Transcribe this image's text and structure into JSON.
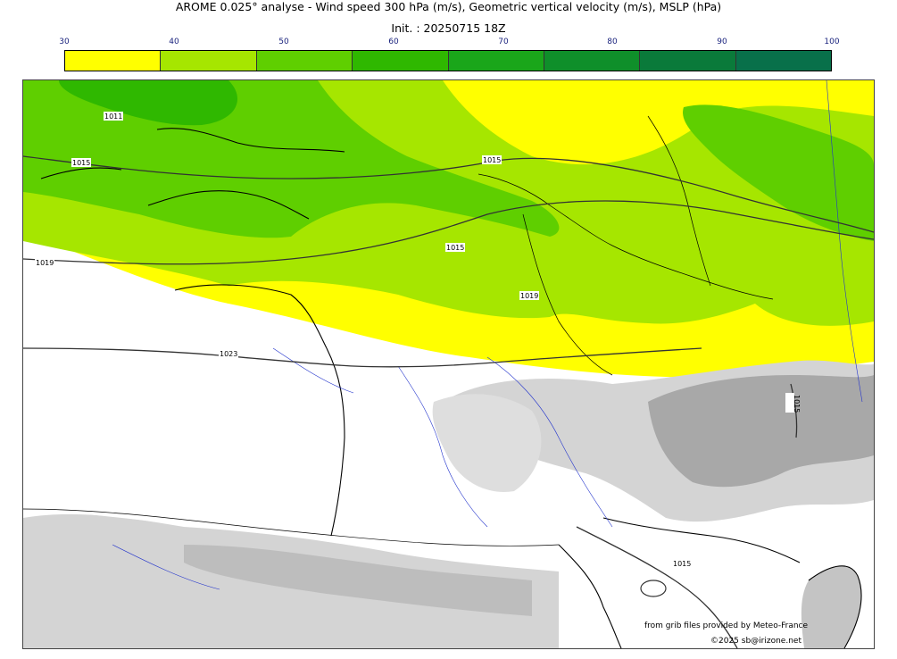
{
  "header": {
    "title": "AROME 0.025° analyse - Wind speed 300 hPa (m/s), Geometric vertical velocity (m/s), MSLP (hPa)",
    "subtitle": "Init. : 20250715 18Z"
  },
  "colorbar": {
    "ticks": [
      "30",
      "40",
      "50",
      "60",
      "70",
      "80",
      "90",
      "100"
    ],
    "colors": [
      "#ffff00",
      "#a6e600",
      "#5fcf00",
      "#2fb800",
      "#1aa61a",
      "#0f8f2a",
      "#0a7a3a",
      "#08704a"
    ]
  },
  "map": {
    "isobar_labels": [
      "1011",
      "1015",
      "1015",
      "1015",
      "1019",
      "1019",
      "1023",
      "1015",
      "1015"
    ],
    "colors": {
      "background": "#ffffff",
      "yellow": "#ffff00",
      "light_green": "#a6e600",
      "mid_green": "#5fcf00",
      "dark_green": "#2fb800",
      "relief_light": "#d9d9d9",
      "relief_dark": "#a8a8a8",
      "rivers": "#2233cc"
    }
  },
  "credits": {
    "line1": "from grib files provided by Meteo-France",
    "line2": "©2025 sb@irizone.net"
  }
}
